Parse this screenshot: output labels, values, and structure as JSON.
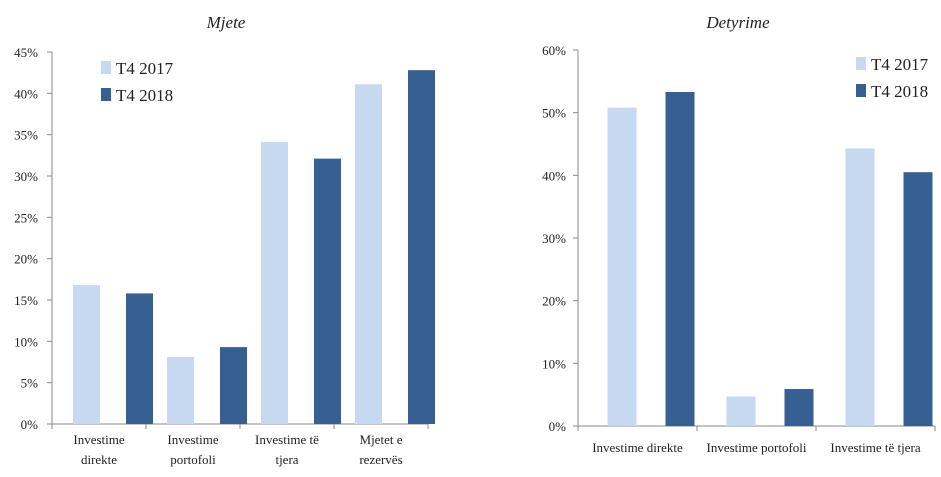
{
  "chart_data": [
    {
      "type": "bar",
      "title": "Mjete",
      "categories": [
        [
          "Investime",
          "direkte"
        ],
        [
          "Investime",
          "portofoli"
        ],
        [
          "Investime të",
          "tjera"
        ],
        [
          "Mjetet e",
          "rezervës"
        ]
      ],
      "series": [
        {
          "name": "T4 2017",
          "values": [
            16.8,
            8.1,
            34.1,
            41.1
          ]
        },
        {
          "name": "T4 2018",
          "values": [
            15.8,
            9.3,
            32.1,
            42.8
          ]
        }
      ],
      "ylim": [
        0,
        45
      ],
      "yticks": [
        "0%",
        "5%",
        "10%",
        "15%",
        "20%",
        "25%",
        "30%",
        "35%",
        "40%",
        "45%"
      ],
      "xlabel": "",
      "ylabel": "",
      "legend_position": "top-left",
      "grid": false
    },
    {
      "type": "bar",
      "title": "Detyrime",
      "categories": [
        [
          "Investime direkte"
        ],
        [
          "Investime portofoli"
        ],
        [
          "Investime të tjera"
        ]
      ],
      "series": [
        {
          "name": "T4 2017",
          "values": [
            50.8,
            4.7,
            44.3
          ]
        },
        {
          "name": "T4 2018",
          "values": [
            53.3,
            5.9,
            40.5
          ]
        }
      ],
      "ylim": [
        0,
        60
      ],
      "yticks": [
        "0%",
        "10%",
        "20%",
        "30%",
        "40%",
        "50%",
        "60%"
      ],
      "xlabel": "",
      "ylabel": "",
      "legend_position": "top-right",
      "grid": false
    }
  ],
  "colors": {
    "T4 2017": "#c6d9f1",
    "T4 2018": "#366092"
  }
}
